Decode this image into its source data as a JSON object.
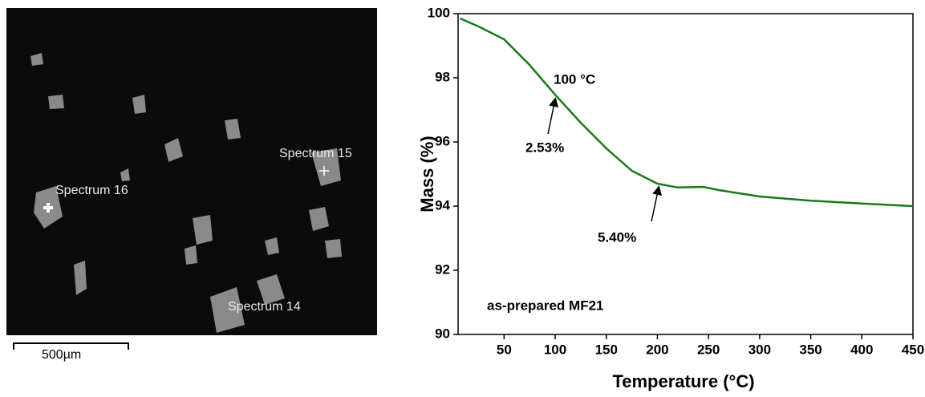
{
  "image": {
    "labels": [
      "Spectrum 15",
      "Spectrum 16",
      "Spectrum 14"
    ],
    "scale_bar": "500µm"
  },
  "chart_data": {
    "type": "line",
    "x_label": "Temperature (°C)",
    "y_label": "Mass (%)",
    "x": [
      7,
      25,
      50,
      75,
      100,
      125,
      150,
      175,
      200,
      220,
      245,
      260,
      300,
      350,
      400,
      450
    ],
    "series": [
      {
        "name": "as-prepared MF21",
        "color": "#1a7a1a",
        "values": [
          99.85,
          99.6,
          99.2,
          98.4,
          97.47,
          96.6,
          95.8,
          95.1,
          94.7,
          94.58,
          94.6,
          94.5,
          94.3,
          94.17,
          94.08,
          94.0
        ]
      }
    ],
    "xlim": [
      5,
      450
    ],
    "ylim": [
      90,
      100
    ],
    "xticks": [
      50,
      100,
      150,
      200,
      250,
      300,
      350,
      400,
      450
    ],
    "yticks": [
      90,
      92,
      94,
      96,
      98,
      100
    ],
    "annotations": [
      "100 °C",
      "2.53%",
      "5.40%"
    ]
  }
}
